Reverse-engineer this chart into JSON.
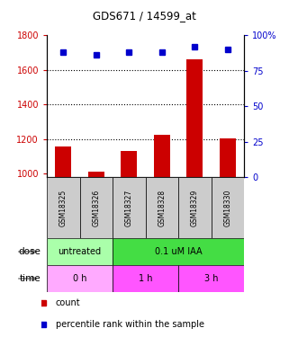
{
  "title": "GDS671 / 14599_at",
  "samples": [
    "GSM18325",
    "GSM18326",
    "GSM18327",
    "GSM18328",
    "GSM18329",
    "GSM18330"
  ],
  "counts": [
    1155,
    1010,
    1130,
    1225,
    1660,
    1205
  ],
  "percentile_ranks": [
    88,
    86,
    88,
    88,
    92,
    90
  ],
  "ylim_left": [
    980,
    1800
  ],
  "ylim_right": [
    0,
    100
  ],
  "yticks_left": [
    1000,
    1200,
    1400,
    1600,
    1800
  ],
  "yticks_right": [
    0,
    25,
    50,
    75,
    100
  ],
  "dose_labels": [
    {
      "label": "untreated",
      "start": 0,
      "end": 2,
      "color": "#AAFFAA"
    },
    {
      "label": "0.1 uM IAA",
      "start": 2,
      "end": 6,
      "color": "#44DD44"
    }
  ],
  "time_labels": [
    {
      "label": "0 h",
      "start": 0,
      "end": 2,
      "color": "#FFAAFF"
    },
    {
      "label": "1 h",
      "start": 2,
      "end": 4,
      "color": "#FF55FF"
    },
    {
      "label": "3 h",
      "start": 4,
      "end": 6,
      "color": "#FF55FF"
    }
  ],
  "bar_color": "#CC0000",
  "dot_color": "#0000CC",
  "grid_color": "#000000",
  "sample_box_color": "#CCCCCC",
  "left_axis_color": "#CC0000",
  "right_axis_color": "#0000CC",
  "legend_red_label": "count",
  "legend_blue_label": "percentile rank within the sample",
  "bar_bottom": 980
}
